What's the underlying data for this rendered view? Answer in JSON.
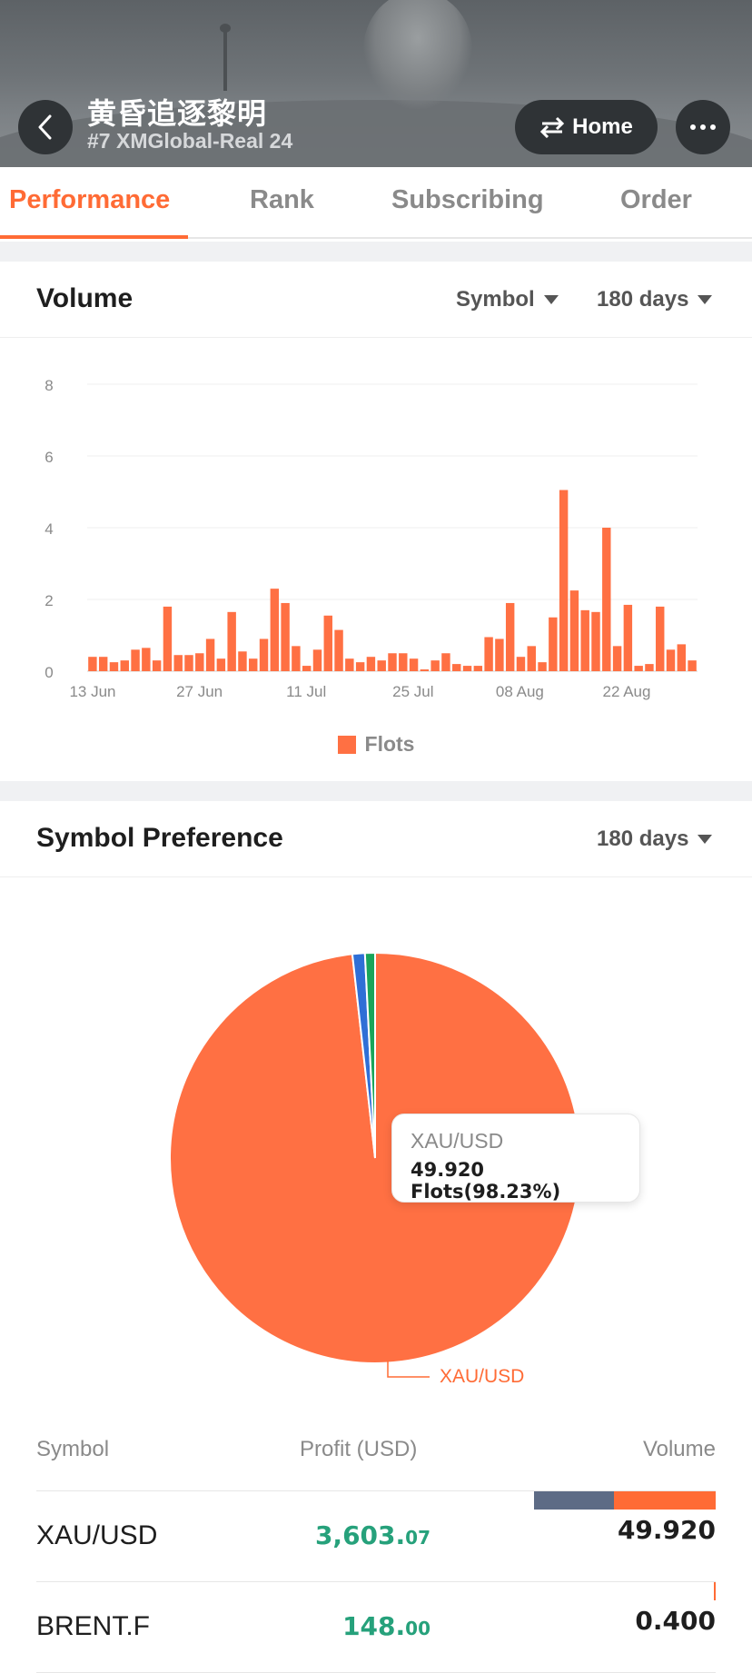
{
  "header": {
    "title": "黄昏追逐黎明",
    "subtitle": "#7 XMGlobal-Real 24",
    "home_label": "Home"
  },
  "tabs": [
    {
      "label": "Performance",
      "active": true
    },
    {
      "label": "Rank",
      "active": false
    },
    {
      "label": "Subscribing",
      "active": false
    },
    {
      "label": "Order",
      "active": false
    }
  ],
  "volume_section": {
    "title": "Volume",
    "symbol_filter": "Symbol",
    "period_filter": "180 days",
    "legend": "Flots"
  },
  "symbol_section": {
    "title": "Symbol Preference",
    "period_filter": "180 days",
    "tooltip_symbol": "XAU/USD",
    "tooltip_value": "49.920 Flots(98.23%)",
    "pie_label": "XAU/USD"
  },
  "table": {
    "headers": {
      "symbol": "Symbol",
      "profit": "Profit (USD)",
      "volume": "Volume"
    },
    "rows": [
      {
        "symbol": "XAU/USD",
        "profit_int": "3,603.",
        "profit_dec": "07",
        "volume": "49.920"
      },
      {
        "symbol": "BRENT.F",
        "profit_int": "148.",
        "profit_dec": "00",
        "volume": "0.400"
      }
    ]
  },
  "colors": {
    "accent": "#ff6b35",
    "bar": "#ff7043",
    "profit": "#26a17b",
    "pie_blue": "#2f6fd6",
    "pie_green": "#1aa55a",
    "vol_bar_dark": "#5d6b85"
  },
  "chart_data": [
    {
      "type": "bar",
      "title": "",
      "xlabel": "",
      "ylabel": "",
      "ylim": [
        0,
        8
      ],
      "yticks": [
        "0",
        "2",
        "4",
        "6",
        "8"
      ],
      "xticks": [
        "13 Jun",
        "27 Jun",
        "11 Jul",
        "25 Jul",
        "08 Aug",
        "22 Aug"
      ],
      "series": [
        {
          "name": "Flots",
          "values": [
            0.4,
            0.4,
            0.25,
            0.3,
            0.6,
            0.65,
            0.3,
            1.8,
            0.45,
            0.45,
            0.5,
            0.9,
            0.35,
            1.65,
            0.55,
            0.35,
            0.9,
            2.3,
            1.9,
            0.7,
            0.15,
            0.6,
            1.55,
            1.15,
            0.35,
            0.25,
            0.4,
            0.3,
            0.5,
            0.5,
            0.35,
            0.05,
            0.3,
            0.5,
            0.2,
            0.15,
            0.15,
            0.95,
            0.9,
            1.9,
            0.4,
            0.7,
            0.25,
            1.5,
            5.05,
            2.25,
            1.7,
            1.65,
            4.0,
            0.7,
            1.85,
            0.15,
            0.2,
            1.8,
            0.6,
            0.75,
            0.3
          ]
        }
      ]
    },
    {
      "type": "pie",
      "title": "",
      "series": [
        {
          "name": "XAU/USD",
          "values": [
            98.23
          ]
        },
        {
          "name": "",
          "values": [
            0.98
          ]
        },
        {
          "name": "",
          "values": [
            0.79
          ]
        }
      ]
    }
  ]
}
